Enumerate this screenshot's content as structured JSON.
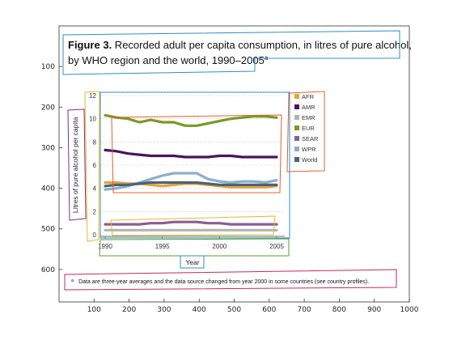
{
  "figure": {
    "title_bold": "Figure 3.",
    "title_rest_line1": " Recorded adult per capita consumption, in litres of pure alcohol,",
    "title_line2": "by WHO region and the world, 1990–2005",
    "title_superscript": "a",
    "footnote_marker": "a",
    "footnote_text": "Data are three-year averages and the data source changed from year 2000 in some countries (see country profiles)."
  },
  "outer_axes": {
    "x_ticks": [
      "100",
      "200",
      "300",
      "400",
      "500",
      "600",
      "700",
      "800",
      "900",
      "1000"
    ],
    "y_ticks": [
      "100",
      "200",
      "300",
      "400",
      "500",
      "600"
    ]
  },
  "chart_data": {
    "type": "line",
    "title": "Recorded adult per capita consumption, in litres of pure alcohol, by WHO region and the world, 1990–2005",
    "xlabel": "Year",
    "ylabel": "Litres of pure alcohol per capita",
    "xlim": [
      1990,
      2005
    ],
    "ylim": [
      0,
      12
    ],
    "x_ticks": [
      1990,
      1995,
      2000,
      2005
    ],
    "y_ticks": [
      0,
      2,
      4,
      6,
      8,
      10,
      12
    ],
    "legend_position": "right",
    "x": [
      1990,
      1991,
      1992,
      1993,
      1994,
      1995,
      1996,
      1997,
      1998,
      1999,
      2000,
      2001,
      2002,
      2003,
      2004,
      2005
    ],
    "series": [
      {
        "name": "AFR",
        "color": "#e8a33a",
        "values": [
          4.5,
          4.5,
          4.4,
          4.4,
          4.3,
          4.2,
          4.3,
          4.4,
          4.4,
          4.3,
          4.2,
          4.1,
          4.1,
          4.1,
          4.1,
          4.2
        ]
      },
      {
        "name": "AMR",
        "color": "#4a1460",
        "values": [
          7.3,
          7.2,
          7.0,
          6.9,
          6.8,
          6.8,
          6.8,
          6.7,
          6.7,
          6.7,
          6.8,
          6.8,
          6.7,
          6.7,
          6.7,
          6.7
        ]
      },
      {
        "name": "EMR",
        "color": "#b3b3b3",
        "values": [
          0.4,
          0.4,
          0.4,
          0.4,
          0.4,
          0.4,
          0.4,
          0.4,
          0.4,
          0.4,
          0.4,
          0.4,
          0.4,
          0.4,
          0.4,
          0.4
        ]
      },
      {
        "name": "EUR",
        "color": "#7a9a23",
        "values": [
          10.3,
          10.1,
          10.0,
          9.7,
          9.9,
          9.7,
          9.7,
          9.4,
          9.4,
          9.6,
          9.8,
          10.0,
          10.1,
          10.2,
          10.2,
          10.1
        ]
      },
      {
        "name": "SEAR",
        "color": "#8c5c96",
        "values": [
          0.9,
          0.9,
          0.9,
          0.9,
          1.0,
          1.0,
          1.1,
          1.1,
          1.1,
          1.0,
          1.0,
          0.9,
          0.9,
          0.9,
          0.9,
          0.9
        ]
      },
      {
        "name": "WPR",
        "color": "#8eadcc",
        "values": [
          3.9,
          4.0,
          4.2,
          4.5,
          4.8,
          5.1,
          5.3,
          5.3,
          5.3,
          4.8,
          4.6,
          4.5,
          4.6,
          4.6,
          4.5,
          4.7
        ]
      },
      {
        "name": "World",
        "color": "#4a6375",
        "values": [
          4.2,
          4.3,
          4.3,
          4.4,
          4.5,
          4.5,
          4.5,
          4.5,
          4.5,
          4.4,
          4.3,
          4.3,
          4.3,
          4.3,
          4.3,
          4.3
        ]
      }
    ]
  },
  "colors": {
    "axis": "#333333",
    "annot_title": "#2b8fc9",
    "annot_plot": "#2b8fc9",
    "annot_legend": "#e0602e",
    "annot_lines": "#e0602e",
    "annot_ylabel": "#7b2f86",
    "annot_yticks": "#e8b825",
    "annot_bottom": "#e8b825",
    "annot_xticks": "#5aa12e",
    "annot_footnote": "#c22b5a"
  }
}
